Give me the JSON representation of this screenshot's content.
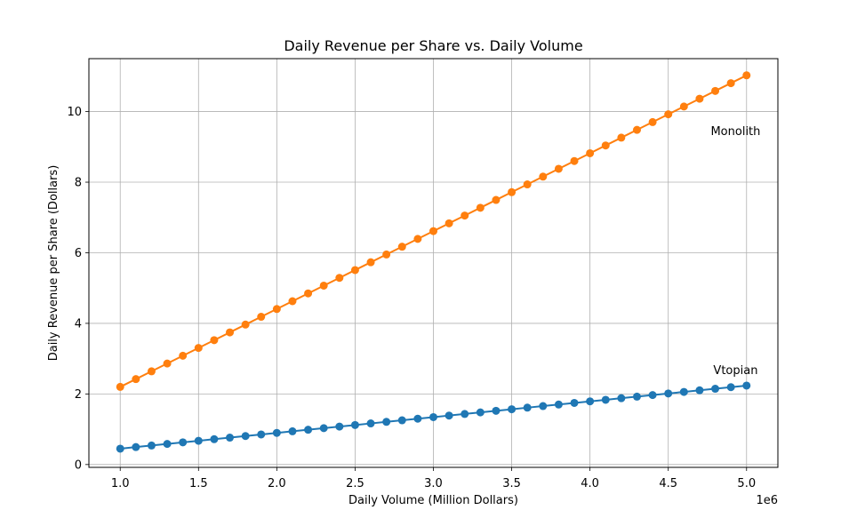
{
  "chart_data": {
    "type": "line",
    "title": "Daily Revenue per Share vs. Daily Volume",
    "xlabel": "Daily Volume (Million Dollars)",
    "ylabel": "Daily Revenue per Share (Dollars)",
    "x_offset_label": "1e6",
    "xlim": [
      800000,
      5200000
    ],
    "ylim": [
      -0.08,
      11.5
    ],
    "x_ticks": [
      1000000,
      1500000,
      2000000,
      2500000,
      3000000,
      3500000,
      4000000,
      4500000,
      5000000
    ],
    "x_tick_labels": [
      "1.0",
      "1.5",
      "2.0",
      "2.5",
      "3.0",
      "3.5",
      "4.0",
      "4.5",
      "5.0"
    ],
    "y_ticks": [
      0,
      2,
      4,
      6,
      8,
      10
    ],
    "y_tick_labels": [
      "0",
      "2",
      "4",
      "6",
      "8",
      "10"
    ],
    "grid": true,
    "x": [
      1000000,
      1100000,
      1200000,
      1300000,
      1400000,
      1500000,
      1600000,
      1700000,
      1800000,
      1900000,
      2000000,
      2100000,
      2200000,
      2300000,
      2400000,
      2500000,
      2600000,
      2700000,
      2800000,
      2900000,
      3000000,
      3100000,
      3200000,
      3300000,
      3400000,
      3500000,
      3600000,
      3700000,
      3800000,
      3900000,
      4000000,
      4100000,
      4200000,
      4300000,
      4400000,
      4500000,
      4600000,
      4700000,
      4800000,
      4900000,
      5000000
    ],
    "series": [
      {
        "color": "#1f77b4",
        "values": [
          0.45,
          0.4946,
          0.5394,
          0.584,
          0.6286,
          0.6734,
          0.718,
          0.7626,
          0.8074,
          0.852,
          0.8966,
          0.9414,
          0.986,
          1.0306,
          1.0754,
          1.12,
          1.1646,
          1.2094,
          1.254,
          1.2986,
          1.3434,
          1.388,
          1.4326,
          1.4774,
          1.522,
          1.5666,
          1.6114,
          1.656,
          1.7006,
          1.7454,
          1.79,
          1.8346,
          1.8794,
          1.924,
          1.9686,
          2.0134,
          2.058,
          2.1026,
          2.1474,
          2.192,
          2.2366
        ]
      },
      {
        "color": "#ff7f0e",
        "values": [
          2.2,
          2.4206,
          2.6414,
          2.862,
          3.0826,
          3.3034,
          3.524,
          3.7446,
          3.9654,
          4.186,
          4.4066,
          4.6274,
          4.848,
          5.0686,
          5.2894,
          5.51,
          5.7306,
          5.9514,
          6.172,
          6.3926,
          6.6134,
          6.834,
          7.0546,
          7.2754,
          7.496,
          7.7166,
          7.9374,
          8.158,
          8.3786,
          8.5994,
          8.82,
          9.0406,
          9.2614,
          9.482,
          9.7026,
          9.9234,
          10.144,
          10.3646,
          10.5854,
          10.806,
          11.0266
        ]
      }
    ],
    "annotations": [
      {
        "text": "Monolith",
        "x": 4930000,
        "y": 9.45,
        "anchor": "middle"
      },
      {
        "text": "Vtopian",
        "x": 4930000,
        "y": 2.68,
        "anchor": "middle"
      }
    ]
  }
}
